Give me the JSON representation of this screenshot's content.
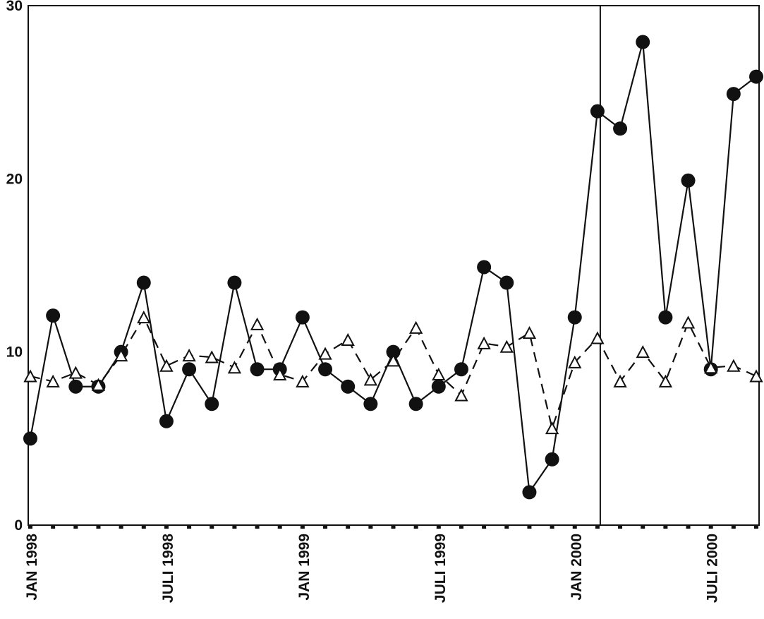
{
  "chart_data": {
    "type": "line",
    "title": "",
    "xlabel": "",
    "ylabel": "",
    "ylim": [
      0,
      30
    ],
    "yticks": [
      "0",
      "10",
      "20",
      "30"
    ],
    "x_tick_labels": [
      "JAN 1998",
      "JULI 1998",
      "JAN 1999",
      "JULI 1999",
      "JAN 2000",
      "JULI 2000"
    ],
    "x": [
      "1998-01",
      "1998-02",
      "1998-03",
      "1998-04",
      "1998-05",
      "1998-06",
      "1998-07",
      "1998-08",
      "1998-09",
      "1998-10",
      "1998-11",
      "1998-12",
      "1999-01",
      "1999-02",
      "1999-03",
      "1999-04",
      "1999-05",
      "1999-06",
      "1999-07",
      "1999-08",
      "1999-09",
      "1999-10",
      "1999-11",
      "1999-12",
      "2000-01",
      "2000-02",
      "2000-03",
      "2000-04",
      "2000-05",
      "2000-06",
      "2000-07",
      "2000-08",
      "2000-09",
      "2000-10"
    ],
    "vertical_line_at": "2000-02",
    "grid": false,
    "legend": "none",
    "series": [
      {
        "marker": "filled-circle",
        "line": "solid",
        "values": [
          5,
          12.1,
          8,
          8,
          10,
          14,
          6,
          9,
          7,
          14,
          9,
          9,
          12,
          9,
          8,
          7,
          10,
          7,
          8,
          9,
          14.9,
          14,
          1.9,
          3.8,
          12,
          23.9,
          22.9,
          27.9,
          12,
          19.9,
          9,
          24.9,
          25.9,
          null
        ]
      },
      {
        "marker": "open-triangle",
        "line": "dashed",
        "values": [
          8.6,
          8.3,
          8.8,
          8.1,
          9.8,
          12,
          9.2,
          9.8,
          9.7,
          9.1,
          11.6,
          8.7,
          8.3,
          9.9,
          10.7,
          8.4,
          9.5,
          11.4,
          8.7,
          7.5,
          10.5,
          10.3,
          11.1,
          5.6,
          9.4,
          10.8,
          8.3,
          10,
          8.3,
          11.7,
          9.1,
          9.2,
          8.6,
          null
        ]
      }
    ]
  }
}
